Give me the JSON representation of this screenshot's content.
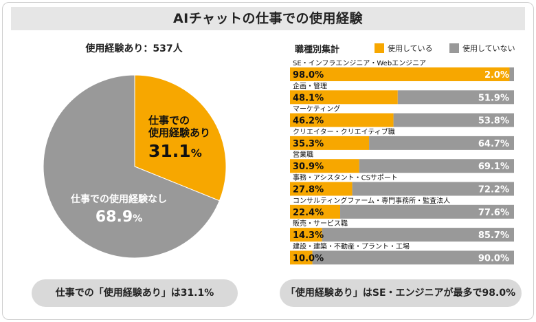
{
  "title": "AIチャットの仕事での使用経験",
  "colors": {
    "used": "#f7a700",
    "unused": "#999999"
  },
  "pie": {
    "heading": "使用経験あり：537人",
    "slices": [
      {
        "label_line1": "仕事での",
        "label_line2": "使用経験あり",
        "value": 31.1,
        "value_text": "31.1",
        "unit": "%"
      },
      {
        "label_line1": "仕事での使用経験なし",
        "label_line2": "",
        "value": 68.9,
        "value_text": "68.9",
        "unit": "%"
      }
    ]
  },
  "bars": {
    "heading": "職種別集計",
    "legend": [
      "使用している",
      "使用していない"
    ]
  },
  "chart_data": [
    {
      "type": "pie",
      "title": "使用経験あり：537人",
      "categories": [
        "仕事での使用経験あり",
        "仕事での使用経験なし"
      ],
      "values": [
        31.1,
        68.9
      ]
    },
    {
      "type": "bar",
      "orientation": "horizontal-stacked",
      "title": "職種別集計",
      "categories": [
        "SE・インフラエンジニア・Webエンジニア",
        "企画・管理",
        "マーケティング",
        "クリエイター・クリエイティブ職",
        "営業職",
        "事務・アシスタント・CSサポート",
        "コンサルティングファーム・専門事務所・監査法人",
        "販売・サービス職",
        "建設・建築・不動産・プラント・工場"
      ],
      "series": [
        {
          "name": "使用している",
          "values": [
            98.0,
            48.1,
            46.2,
            35.3,
            30.9,
            27.8,
            22.4,
            14.3,
            10.0
          ]
        },
        {
          "name": "使用していない",
          "values": [
            2.0,
            51.9,
            53.8,
            64.7,
            69.1,
            72.2,
            77.6,
            85.7,
            90.0
          ]
        }
      ],
      "value_labels": {
        "used": [
          "98.0%",
          "48.1%",
          "46.2%",
          "35.3%",
          "30.9%",
          "27.8%",
          "22.4%",
          "14.3%",
          "10.0%"
        ],
        "unused": [
          "2.0%",
          "51.9%",
          "53.8%",
          "64.7%",
          "69.1%",
          "72.2%",
          "77.6%",
          "85.7%",
          "90.0%"
        ]
      },
      "legend_position": "top-right"
    }
  ],
  "summary": {
    "left": "仕事での「使用経験あり」は31.1%",
    "right": "「使用経験あり」はSE・エンジニアが最多で98.0%"
  }
}
